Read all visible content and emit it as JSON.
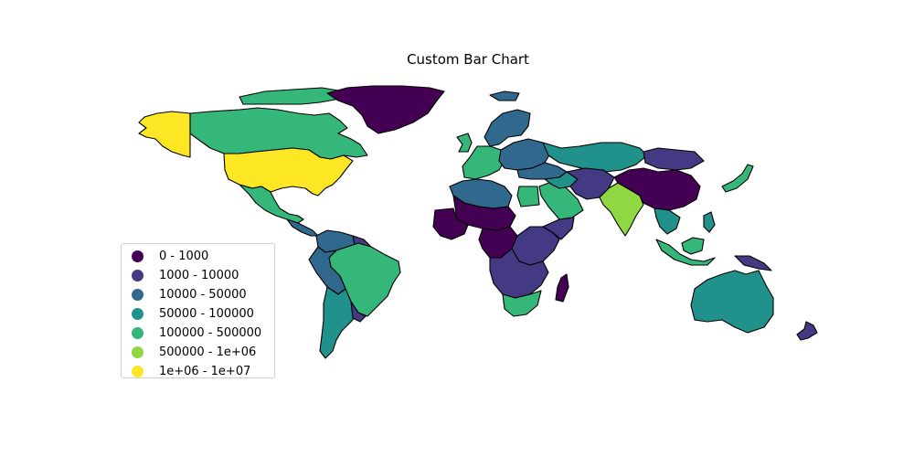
{
  "title": "Custom Bar Chart",
  "legend": {
    "items": [
      {
        "label": "0 - 1000",
        "color": "#440154"
      },
      {
        "label": "1000 - 10000",
        "color": "#443983"
      },
      {
        "label": "10000 - 50000",
        "color": "#31688e"
      },
      {
        "label": "50000 - 100000",
        "color": "#21918c"
      },
      {
        "label": "100000 - 500000",
        "color": "#35b779"
      },
      {
        "label": "500000 - 1e+06",
        "color": "#90d743"
      },
      {
        "label": "1e+06 - 1e+07",
        "color": "#fde725"
      }
    ]
  },
  "map_data": {
    "type": "choropleth",
    "colormap": "viridis",
    "edge_color": "#000000",
    "regions": [
      {
        "name": "alaska",
        "bin": 6
      },
      {
        "name": "canada",
        "bin": 4
      },
      {
        "name": "greenland",
        "bin": 0
      },
      {
        "name": "usa",
        "bin": 6
      },
      {
        "name": "mexico",
        "bin": 4
      },
      {
        "name": "central-america",
        "bin": 2
      },
      {
        "name": "colombia-venezuela",
        "bin": 2
      },
      {
        "name": "guianas",
        "bin": 1
      },
      {
        "name": "brazil",
        "bin": 4
      },
      {
        "name": "andes",
        "bin": 2
      },
      {
        "name": "argentina-chile",
        "bin": 3
      },
      {
        "name": "uruguay",
        "bin": 1
      },
      {
        "name": "iceland",
        "bin": 2
      },
      {
        "name": "uk-ireland",
        "bin": 4
      },
      {
        "name": "scandinavia",
        "bin": 2
      },
      {
        "name": "western-europe",
        "bin": 4
      },
      {
        "name": "central-europe",
        "bin": 2
      },
      {
        "name": "russia",
        "bin": 3
      },
      {
        "name": "turkey-caucasus",
        "bin": 2
      },
      {
        "name": "north-africa",
        "bin": 2
      },
      {
        "name": "egypt",
        "bin": 4
      },
      {
        "name": "sahel",
        "bin": 0
      },
      {
        "name": "west-africa",
        "bin": 0
      },
      {
        "name": "central-africa",
        "bin": 0
      },
      {
        "name": "east-africa",
        "bin": 1
      },
      {
        "name": "horn-of-africa",
        "bin": 1
      },
      {
        "name": "southern-africa",
        "bin": 1
      },
      {
        "name": "south-africa",
        "bin": 4
      },
      {
        "name": "madagascar",
        "bin": 0
      },
      {
        "name": "arabia",
        "bin": 4
      },
      {
        "name": "middle-east",
        "bin": 3
      },
      {
        "name": "iran-central-asia",
        "bin": 1
      },
      {
        "name": "india",
        "bin": 5
      },
      {
        "name": "china",
        "bin": 0
      },
      {
        "name": "mongolia",
        "bin": 1
      },
      {
        "name": "southeast-asia",
        "bin": 3
      },
      {
        "name": "indonesia",
        "bin": 4
      },
      {
        "name": "philippines",
        "bin": 3
      },
      {
        "name": "japan",
        "bin": 4
      },
      {
        "name": "papua",
        "bin": 1
      },
      {
        "name": "australia",
        "bin": 3
      },
      {
        "name": "new-zealand",
        "bin": 1
      }
    ]
  }
}
